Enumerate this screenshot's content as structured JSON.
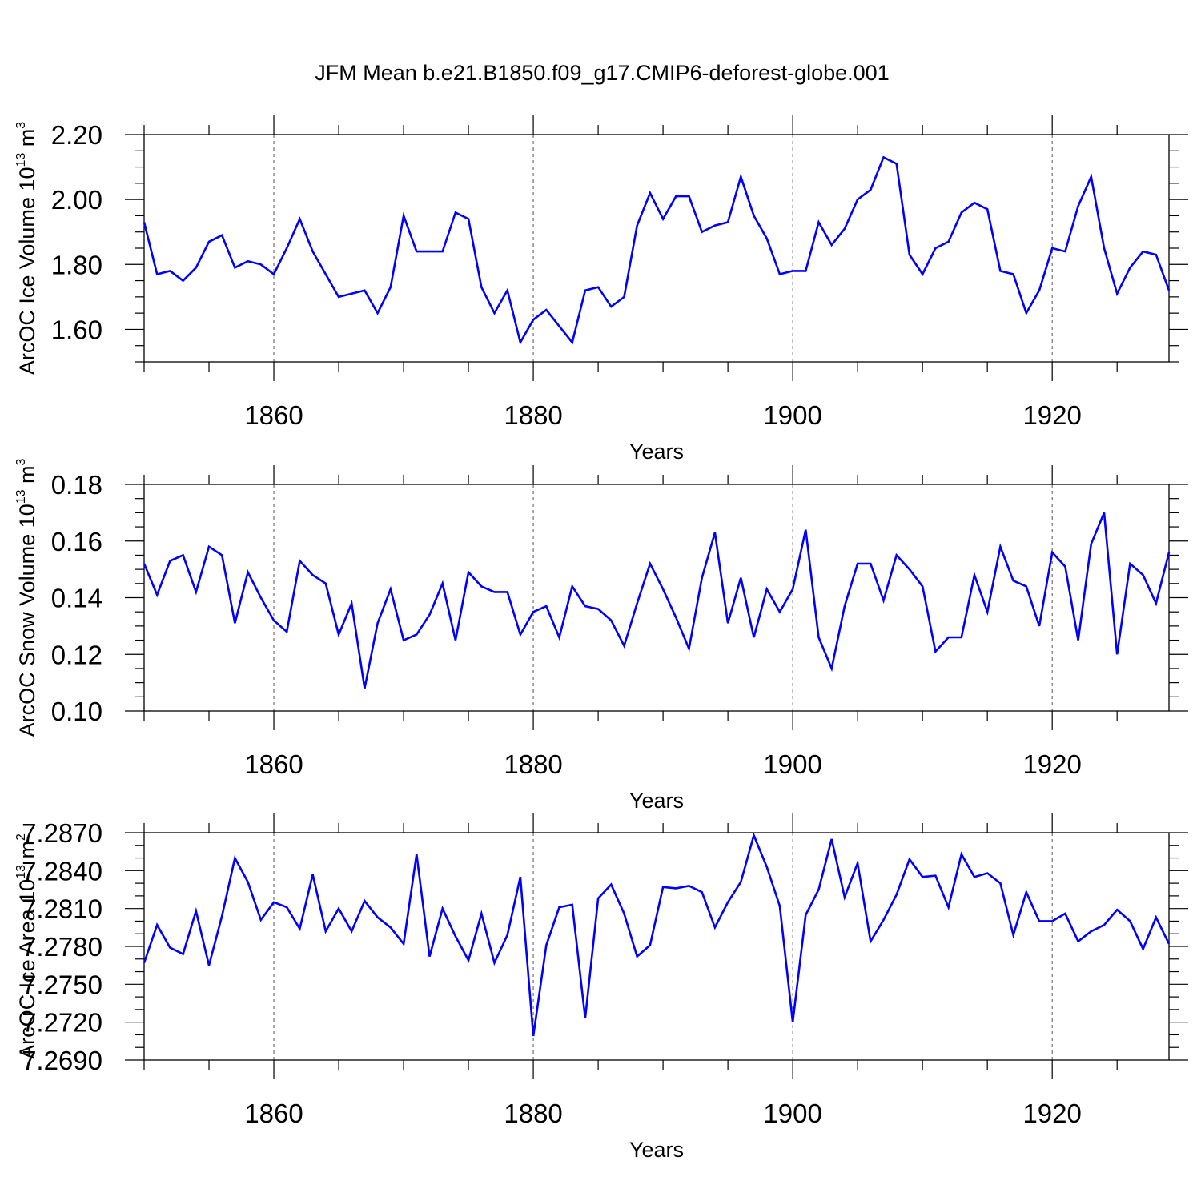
{
  "chart_data": {
    "type": "line",
    "title": "JFM Mean b.e21.B1850.f09_g17.CMIP6-deforest-globe.001",
    "line_color": "#0000ff",
    "frame_color": "#000000",
    "grid_color": "#555555",
    "x": [
      1850,
      1851,
      1852,
      1853,
      1854,
      1855,
      1856,
      1857,
      1858,
      1859,
      1860,
      1861,
      1862,
      1863,
      1864,
      1865,
      1866,
      1867,
      1868,
      1869,
      1870,
      1871,
      1872,
      1873,
      1874,
      1875,
      1876,
      1877,
      1878,
      1879,
      1880,
      1881,
      1882,
      1883,
      1884,
      1885,
      1886,
      1887,
      1888,
      1889,
      1890,
      1891,
      1892,
      1893,
      1894,
      1895,
      1896,
      1897,
      1898,
      1899,
      1900,
      1901,
      1902,
      1903,
      1904,
      1905,
      1906,
      1907,
      1908,
      1909,
      1910,
      1911,
      1912,
      1913,
      1914,
      1915,
      1916,
      1917,
      1918,
      1919,
      1920,
      1921,
      1922,
      1923,
      1924,
      1925,
      1926,
      1927,
      1928,
      1929
    ],
    "panels": [
      {
        "id": "ice-volume",
        "ylabel": "ArcOC Ice Volume 10",
        "ylabel_sup": "13",
        "ylabel_unit": " m",
        "ylabel_unit_sup": "3",
        "xlabel": "Years",
        "xlim": [
          1850,
          1929
        ],
        "ylim": [
          1.5,
          2.2
        ],
        "yticks": [
          1.6,
          1.8,
          2.0,
          2.2
        ],
        "ytick_labels": [
          "1.60",
          "1.80",
          "2.00",
          "2.20"
        ],
        "yminor": 0.05,
        "xticks": [
          1860,
          1880,
          1900,
          1920
        ],
        "xtick_labels": [
          "1860",
          "1880",
          "1900",
          "1920"
        ],
        "xminor": 5,
        "grid_x": [
          1860,
          1880,
          1900,
          1920
        ],
        "values": [
          1.93,
          1.77,
          1.78,
          1.75,
          1.79,
          1.87,
          1.89,
          1.79,
          1.81,
          1.8,
          1.77,
          1.85,
          1.94,
          1.84,
          1.77,
          1.7,
          1.71,
          1.72,
          1.65,
          1.73,
          1.95,
          1.84,
          1.84,
          1.84,
          1.96,
          1.94,
          1.73,
          1.65,
          1.72,
          1.56,
          1.63,
          1.66,
          1.61,
          1.56,
          1.72,
          1.73,
          1.67,
          1.7,
          1.92,
          2.02,
          1.94,
          2.01,
          2.01,
          1.9,
          1.92,
          1.93,
          2.07,
          1.95,
          1.88,
          1.77,
          1.78,
          1.78,
          1.93,
          1.86,
          1.91,
          2.0,
          2.03,
          2.13,
          2.11,
          1.83,
          1.77,
          1.85,
          1.87,
          1.96,
          1.99,
          1.97,
          1.78,
          1.77,
          1.65,
          1.72,
          1.85,
          1.84,
          1.98,
          2.07,
          1.85,
          1.71,
          1.79,
          1.84,
          1.83,
          1.72
        ]
      },
      {
        "id": "snow-volume",
        "ylabel": "ArcOC Snow Volume 10",
        "ylabel_sup": "13",
        "ylabel_unit": " m",
        "ylabel_unit_sup": "3",
        "xlabel": "Years",
        "xlim": [
          1850,
          1929
        ],
        "ylim": [
          0.1,
          0.18
        ],
        "yticks": [
          0.1,
          0.12,
          0.14,
          0.16,
          0.18
        ],
        "ytick_labels": [
          "0.10",
          "0.12",
          "0.14",
          "0.16",
          "0.18"
        ],
        "yminor": 0.005,
        "xticks": [
          1860,
          1880,
          1900,
          1920
        ],
        "xtick_labels": [
          "1860",
          "1880",
          "1900",
          "1920"
        ],
        "xminor": 5,
        "grid_x": [
          1860,
          1880,
          1900,
          1920
        ],
        "values": [
          0.152,
          0.141,
          0.153,
          0.155,
          0.142,
          0.158,
          0.155,
          0.131,
          0.149,
          0.14,
          0.132,
          0.128,
          0.153,
          0.148,
          0.145,
          0.127,
          0.138,
          0.108,
          0.131,
          0.143,
          0.125,
          0.127,
          0.134,
          0.145,
          0.125,
          0.149,
          0.144,
          0.142,
          0.142,
          0.127,
          0.135,
          0.137,
          0.126,
          0.144,
          0.137,
          0.136,
          0.132,
          0.123,
          0.138,
          0.152,
          0.143,
          0.133,
          0.122,
          0.147,
          0.163,
          0.131,
          0.147,
          0.126,
          0.143,
          0.135,
          0.143,
          0.164,
          0.126,
          0.115,
          0.137,
          0.152,
          0.152,
          0.139,
          0.155,
          0.15,
          0.144,
          0.121,
          0.126,
          0.126,
          0.148,
          0.135,
          0.158,
          0.146,
          0.144,
          0.13,
          0.156,
          0.151,
          0.125,
          0.159,
          0.17,
          0.12,
          0.152,
          0.148,
          0.138,
          0.156
        ]
      },
      {
        "id": "ice-area",
        "ylabel": "ArcOC Ice Area 10",
        "ylabel_sup": "13",
        "ylabel_unit": " m",
        "ylabel_unit_sup": "2",
        "xlabel": "Years",
        "xlim": [
          1850,
          1929
        ],
        "ylim": [
          7.269,
          7.287
        ],
        "yticks": [
          7.269,
          7.272,
          7.275,
          7.278,
          7.281,
          7.284,
          7.287
        ],
        "ytick_labels": [
          "7.2690",
          "7.2720",
          "7.2750",
          "7.2780",
          "7.2810",
          "7.2840",
          "7.2870"
        ],
        "yminor": 0.001,
        "xticks": [
          1860,
          1880,
          1900,
          1920
        ],
        "xtick_labels": [
          "1860",
          "1880",
          "1900",
          "1920"
        ],
        "xminor": 5,
        "grid_x": [
          1860,
          1880,
          1900,
          1920
        ],
        "values": [
          7.2767,
          7.2797,
          7.2779,
          7.2774,
          7.2808,
          7.2765,
          7.2804,
          7.285,
          7.2831,
          7.2801,
          7.2815,
          7.2811,
          7.2794,
          7.2837,
          7.2792,
          7.281,
          7.2792,
          7.2816,
          7.2803,
          7.2795,
          7.2782,
          7.2853,
          7.2772,
          7.281,
          7.2788,
          7.2769,
          7.2806,
          7.2767,
          7.2789,
          7.2835,
          7.2709,
          7.2781,
          7.2811,
          7.2813,
          7.2723,
          7.2818,
          7.2829,
          7.2806,
          7.2772,
          7.2781,
          7.2827,
          7.2826,
          7.2828,
          7.2823,
          7.2795,
          7.2815,
          7.2831,
          7.2868,
          7.2843,
          7.2812,
          7.272,
          7.2805,
          7.2825,
          7.2865,
          7.2819,
          7.2846,
          7.2784,
          7.2801,
          7.2821,
          7.2849,
          7.2835,
          7.2836,
          7.2811,
          7.2853,
          7.2835,
          7.2838,
          7.283,
          7.2789,
          7.2823,
          7.28,
          7.28,
          7.2806,
          7.2784,
          7.2792,
          7.2797,
          7.2809,
          7.28,
          7.2778,
          7.2803,
          7.2782
        ]
      }
    ]
  }
}
